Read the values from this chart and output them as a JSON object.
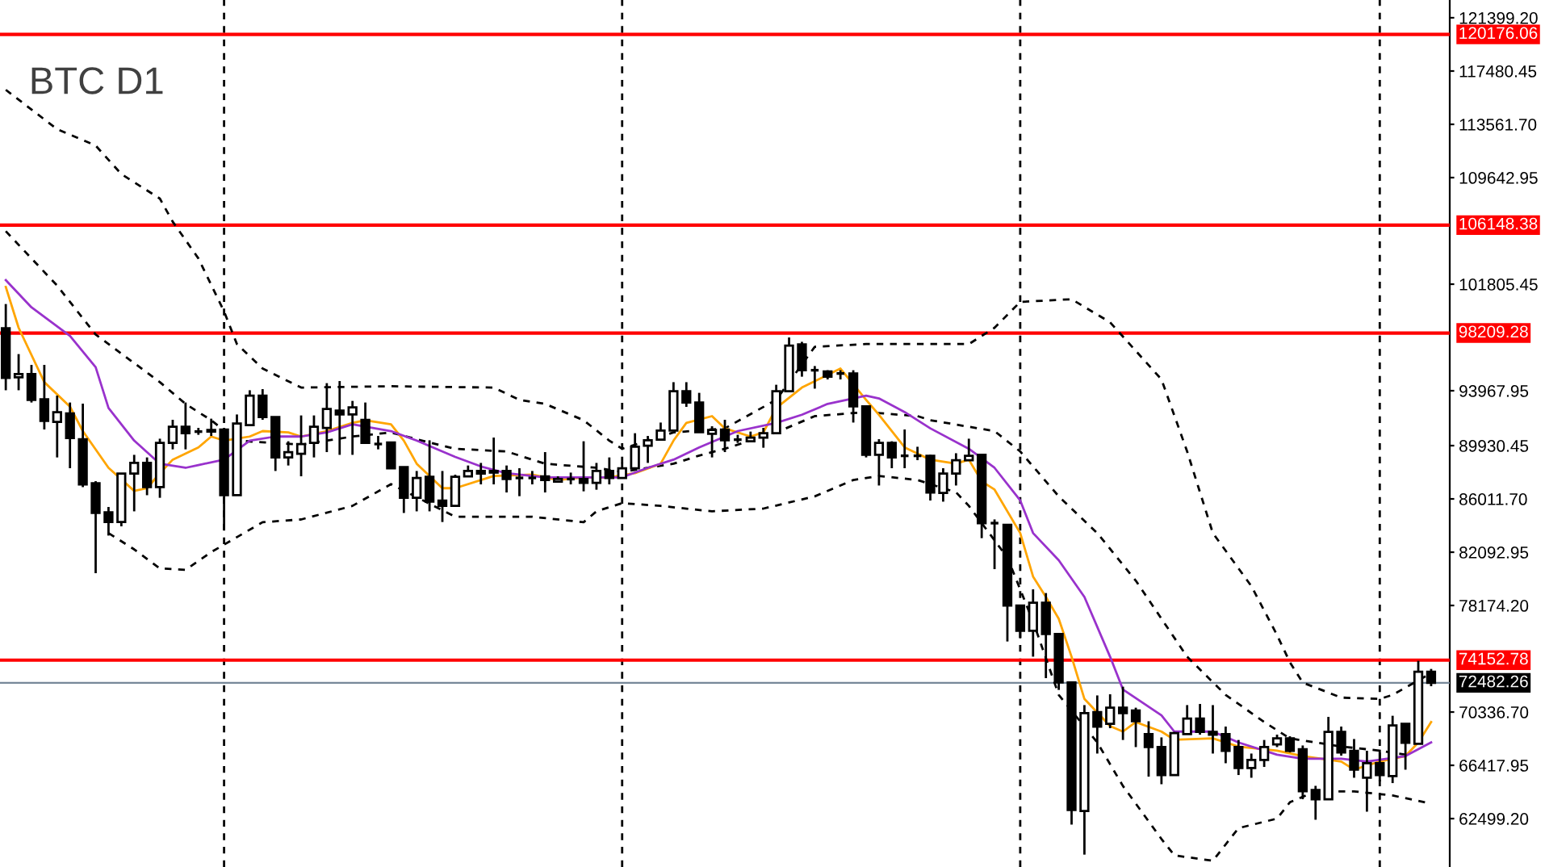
{
  "chart_data": {
    "type": "candlestick",
    "title": "BTC D1",
    "categories": [
      null,
      null,
      null,
      null,
      null,
      null,
      null,
      null,
      null,
      null,
      null,
      null,
      null,
      null,
      null,
      null,
      null,
      null,
      null,
      null,
      null,
      null,
      null,
      null,
      null,
      null,
      null,
      null,
      null,
      null,
      null,
      null,
      null,
      null,
      null,
      null,
      null,
      null,
      null,
      null,
      null,
      null,
      null,
      null,
      null,
      null,
      null,
      null,
      null,
      null,
      null,
      null,
      null,
      null,
      null,
      null,
      null,
      null,
      null,
      null,
      null,
      null,
      null,
      null,
      null,
      null,
      null,
      null,
      null,
      null,
      null,
      null,
      null,
      null,
      null,
      null,
      null,
      null,
      null,
      null,
      null,
      null,
      null,
      null,
      null,
      null,
      null,
      null,
      null,
      null,
      null,
      null,
      null,
      null,
      null,
      null,
      null,
      null,
      null,
      null,
      null,
      null,
      null,
      null,
      null,
      null,
      null,
      null,
      null,
      null,
      null,
      null
    ],
    "ohlc": [
      [
        98563,
        100344,
        94003,
        94918
      ],
      [
        94953,
        96663,
        94003,
        95191
      ],
      [
        95191,
        95868,
        93101,
        93291
      ],
      [
        93338,
        95868,
        91118,
        91747
      ],
      [
        91676,
        93611,
        89063,
        92388
      ],
      [
        92305,
        93101,
        88268,
        90488
      ],
      [
        90405,
        93018,
        86878,
        87080
      ],
      [
        87163,
        87317,
        80549,
        84978
      ],
      [
        85026,
        85418,
        83316,
        84313
      ],
      [
        84313,
        87911,
        83993,
        87876
      ],
      [
        87876,
        89253,
        85097,
        88659
      ],
      [
        88659,
        89063,
        86284,
        86878
      ],
      [
        86878,
        90441,
        86094,
        90132
      ],
      [
        90132,
        91830,
        89657,
        91319
      ],
      [
        91319,
        93101,
        89657,
        90844
      ],
      [
        90963,
        91236,
        90726,
        90963
      ],
      [
        91082,
        91913,
        90642,
        90963
      ],
      [
        91118,
        91236,
        83719,
        86284
      ],
      [
        86284,
        92222,
        86284,
        91557
      ],
      [
        91438,
        94003,
        91438,
        93611
      ],
      [
        93611,
        94086,
        91830,
        92032
      ],
      [
        92032,
        92032,
        88066,
        89063
      ],
      [
        89063,
        90251,
        88469,
        89455
      ],
      [
        89336,
        92151,
        87674,
        90049
      ],
      [
        90132,
        92151,
        89063,
        91319
      ],
      [
        91236,
        94526,
        89455,
        92626
      ],
      [
        92507,
        94680,
        89253,
        92222
      ],
      [
        92222,
        93219,
        89253,
        92744
      ],
      [
        91830,
        93101,
        90132,
        90132
      ],
      [
        90049,
        90642,
        89657,
        90049
      ],
      [
        90168,
        90168,
        88268,
        88268
      ],
      [
        88351,
        88351,
        84978,
        86094
      ],
      [
        86094,
        88066,
        85097,
        87555
      ],
      [
        87638,
        90322,
        85097,
        85809
      ],
      [
        85893,
        88066,
        84313,
        85501
      ],
      [
        85501,
        87793,
        85501,
        87638
      ],
      [
        87674,
        88469,
        87674,
        88066
      ],
      [
        88066,
        88659,
        87080,
        87876
      ],
      [
        88066,
        90524,
        87080,
        87947
      ],
      [
        88066,
        88469,
        86486,
        87472
      ],
      [
        87555,
        88268,
        86213,
        87555
      ],
      [
        87555,
        88066,
        87080,
        87555
      ],
      [
        87674,
        89455,
        86486,
        87401
      ],
      [
        87282,
        87674,
        87282,
        87472
      ],
      [
        87472,
        87947,
        87080,
        87472
      ],
      [
        87472,
        90251,
        86569,
        87199
      ],
      [
        87199,
        88659,
        86688,
        88066
      ],
      [
        88066,
        89063,
        87080,
        87555
      ],
      [
        87555,
        88659,
        87555,
        88268
      ],
      [
        88268,
        90844,
        88268,
        89847
      ],
      [
        89930,
        90642,
        88659,
        90322
      ],
      [
        90369,
        91628,
        90369,
        91034
      ],
      [
        91034,
        94597,
        91034,
        93932
      ],
      [
        93932,
        94597,
        92780,
        93101
      ],
      [
        93101,
        93813,
        90916,
        90916
      ],
      [
        90797,
        91355,
        89063,
        91082
      ],
      [
        91118,
        91830,
        89455,
        90322
      ],
      [
        90369,
        90726,
        90132,
        90369
      ],
      [
        90251,
        90963,
        90251,
        90524
      ],
      [
        90524,
        91236,
        89776,
        90844
      ],
      [
        90844,
        94407,
        90844,
        93932
      ],
      [
        93932,
        97886,
        93932,
        97293
      ],
      [
        97376,
        97566,
        95001,
        95476
      ],
      [
        95476,
        95784,
        94122,
        95476
      ],
      [
        95393,
        95476,
        94799,
        95001
      ],
      [
        95238,
        95476,
        94799,
        95238
      ],
      [
        95238,
        95476,
        91628,
        92816
      ],
      [
        92816,
        92899,
        89063,
        89253
      ],
      [
        89253,
        90405,
        86997,
        90132
      ],
      [
        90132,
        90251,
        88268,
        89063
      ],
      [
        89182,
        91118,
        88268,
        89182
      ],
      [
        89182,
        89847,
        88861,
        89182
      ],
      [
        89182,
        89253,
        85893,
        86486
      ],
      [
        86451,
        88268,
        85809,
        87876
      ],
      [
        87876,
        89372,
        86997,
        88861
      ],
      [
        88861,
        90441,
        88861,
        89182
      ],
      [
        89253,
        89253,
        83126,
        84230
      ],
      [
        84230,
        84503,
        80846,
        84230
      ],
      [
        84111,
        84111,
        75526,
        78174
      ],
      [
        78174,
        78174,
        75799,
        76309
      ],
      [
        76309,
        79361,
        74409,
        78376
      ],
      [
        78376,
        79088,
        72830,
        76072
      ],
      [
        76072,
        76072,
        71963,
        72509
      ],
      [
        72509,
        72593,
        62059,
        63128
      ],
      [
        63057,
        70847,
        59851,
        70253
      ],
      [
        70336,
        71559,
        67284,
        69268
      ],
      [
        69469,
        71643,
        69149,
        70657
      ],
      [
        70657,
        72201,
        68282,
        70253
      ],
      [
        70455,
        70657,
        67759,
        69659
      ],
      [
        68709,
        69659,
        65586,
        67759
      ],
      [
        67759,
        68472,
        65028,
        65705
      ],
      [
        65705,
        68876,
        65705,
        68792
      ],
      [
        68709,
        70847,
        68709,
        69861
      ],
      [
        69861,
        70930,
        68674,
        68876
      ],
      [
        68876,
        70847,
        67284,
        68674
      ],
      [
        68709,
        69268,
        66572,
        67486
      ],
      [
        67759,
        68282,
        65705,
        66216
      ],
      [
        66216,
        67284,
        65503,
        66809
      ],
      [
        66809,
        68282,
        66299,
        67759
      ],
      [
        67961,
        68674,
        67759,
        68401
      ],
      [
        68401,
        68555,
        67368,
        67486
      ],
      [
        67605,
        67878,
        63924,
        64518
      ],
      [
        64601,
        64909,
        62416,
        63924
      ],
      [
        63924,
        69980,
        63924,
        68876
      ],
      [
        68876,
        69268,
        67130,
        67368
      ],
      [
        67486,
        68353,
        65503,
        66097
      ],
      [
        65503,
        67486,
        63009,
        66572
      ],
      [
        66572,
        67569,
        65230,
        65705
      ],
      [
        65622,
        70063,
        65111,
        69351
      ],
      [
        69469,
        69469,
        66097,
        68080
      ],
      [
        67997,
        74101,
        67997,
        73305
      ],
      [
        73305,
        73507,
        72236,
        72482
      ]
    ],
    "series": [
      {
        "type": "line",
        "color": "#000000",
        "line_style": "dashed",
        "values": [
          116100,
          null,
          null,
          null,
          113200,
          null,
          null,
          112000,
          null,
          109900,
          null,
          null,
          108100,
          106400,
          null,
          103700,
          null,
          99800,
          97400,
          null,
          95600,
          null,
          null,
          94200,
          null,
          null,
          null,
          null,
          null,
          null,
          94300,
          null,
          null,
          null,
          null,
          null,
          null,
          null,
          94200,
          null,
          93300,
          null,
          93000,
          null,
          null,
          91800,
          null,
          90300,
          89700,
          null,
          90300,
          null,
          90900,
          null,
          null,
          null,
          91200,
          null,
          null,
          null,
          93300,
          null,
          null,
          97200,
          null,
          null,
          null,
          97400,
          null,
          null,
          null,
          null,
          null,
          null,
          null,
          97400,
          null,
          98600,
          null,
          100500,
          null,
          null,
          null,
          100700,
          null,
          null,
          99000,
          null,
          null,
          null,
          94800,
          null,
          89500,
          null,
          83500,
          null,
          null,
          79600,
          null,
          76000,
          74000,
          72500,
          null,
          null,
          71400,
          null,
          null,
          71300,
          71600,
          null,
          null,
          73200
        ]
      },
      {
        "type": "line",
        "color": "#000000",
        "line_style": "dashed",
        "values": [
          105700,
          null,
          103700,
          null,
          101700,
          null,
          null,
          98100,
          null,
          null,
          null,
          null,
          94600,
          null,
          93000,
          null,
          91800,
          null,
          90300,
          null,
          null,
          null,
          null,
          90000,
          null,
          null,
          null,
          90600,
          null,
          null,
          90900,
          null,
          90400,
          null,
          null,
          89700,
          null,
          null,
          null,
          89500,
          null,
          null,
          88600,
          null,
          null,
          null,
          88300,
          null,
          88000,
          null,
          null,
          null,
          88600,
          null,
          89200,
          null,
          89700,
          null,
          null,
          null,
          90900,
          null,
          null,
          92100,
          null,
          null,
          null,
          92400,
          null,
          null,
          null,
          92100,
          91800,
          null,
          null,
          null,
          null,
          91000,
          null,
          89500,
          null,
          null,
          86200,
          null,
          null,
          83500,
          null,
          null,
          80000,
          null,
          null,
          null,
          74400,
          null,
          null,
          71600,
          null,
          null,
          69600,
          null,
          68400,
          null,
          null,
          null,
          67800,
          null,
          null,
          67500,
          null,
          67200,
          null,
          null
        ]
      },
      {
        "type": "line",
        "color": "#000000",
        "line_style": "dashed",
        "values": [
          null,
          null,
          null,
          null,
          null,
          null,
          null,
          null,
          83500,
          null,
          82300,
          null,
          80900,
          null,
          80800,
          null,
          82100,
          null,
          83200,
          null,
          84300,
          null,
          null,
          84500,
          null,
          null,
          null,
          85500,
          null,
          null,
          87100,
          null,
          null,
          null,
          null,
          84700,
          null,
          null,
          null,
          null,
          null,
          84700,
          null,
          null,
          null,
          84300,
          85100,
          null,
          85700,
          null,
          null,
          85500,
          null,
          null,
          null,
          85100,
          null,
          null,
          null,
          85300,
          null,
          null,
          null,
          86200,
          null,
          null,
          87400,
          null,
          87700,
          null,
          null,
          87400,
          null,
          null,
          86500,
          85500,
          null,
          null,
          81700,
          null,
          77000,
          null,
          71600,
          null,
          null,
          68100,
          null,
          64900,
          null,
          null,
          61000,
          59800,
          null,
          null,
          59400,
          null,
          61800,
          null,
          null,
          62500,
          63700,
          null,
          64500,
          null,
          null,
          64500,
          null,
          null,
          64200,
          null,
          null,
          63600
        ]
      },
      {
        "type": "line",
        "color": "#ffa500",
        "line_style": "solid",
        "values": [
          101600,
          98600,
          null,
          94600,
          null,
          92800,
          91000,
          null,
          88300,
          null,
          86600,
          86800,
          87900,
          88900,
          null,
          89800,
          90600,
          90300,
          null,
          90600,
          91000,
          null,
          90900,
          90600,
          null,
          91000,
          null,
          91600,
          91800,
          null,
          91500,
          90300,
          88600,
          null,
          86800,
          86800,
          null,
          null,
          87700,
          null,
          null,
          87800,
          null,
          87400,
          null,
          87600,
          null,
          87600,
          null,
          87900,
          null,
          88600,
          90300,
          91600,
          null,
          92100,
          91200,
          null,
          90600,
          90900,
          92700,
          null,
          94200,
          null,
          null,
          95600,
          null,
          93300,
          92200,
          null,
          89800,
          null,
          88900,
          null,
          88600,
          88900,
          87300,
          86700,
          null,
          83500,
          80300,
          78800,
          77200,
          74400,
          71300,
          null,
          69300,
          68900,
          69600,
          null,
          68900,
          68300,
          null,
          null,
          68400,
          null,
          67800,
          null,
          null,
          67500,
          null,
          67100,
          null,
          null,
          66700,
          66100,
          null,
          66700,
          null,
          67100,
          68100,
          69600
        ]
      },
      {
        "type": "line",
        "color": "#9932cc",
        "line_style": "solid",
        "values": [
          102100,
          null,
          100100,
          null,
          null,
          98000,
          null,
          95700,
          92700,
          null,
          90300,
          null,
          88600,
          null,
          88300,
          88500,
          null,
          88900,
          null,
          90300,
          null,
          90600,
          null,
          90600,
          null,
          90900,
          null,
          91500,
          null,
          null,
          91000,
          null,
          90300,
          null,
          null,
          89100,
          null,
          88400,
          null,
          87900,
          null,
          null,
          87600,
          null,
          null,
          87600,
          null,
          null,
          87600,
          null,
          88300,
          null,
          88900,
          null,
          89800,
          null,
          90600,
          91000,
          null,
          null,
          91600,
          null,
          92200,
          null,
          93000,
          null,
          null,
          93600,
          93400,
          null,
          92400,
          null,
          91200,
          null,
          null,
          89700,
          null,
          88300,
          null,
          85900,
          83500,
          null,
          81500,
          null,
          78800,
          null,
          74400,
          72000,
          null,
          null,
          70100,
          68900,
          null,
          null,
          68900,
          null,
          68100,
          null,
          null,
          67200,
          null,
          66900,
          null,
          null,
          66900,
          null,
          66700,
          null,
          null,
          67100,
          null,
          68100
        ]
      }
    ],
    "ylim": [
      58940,
      122705
    ],
    "yticks": [
      {
        "value": 121399.2,
        "label": "121399.20"
      },
      {
        "value": 117480.45,
        "label": "117480.45"
      },
      {
        "value": 113561.7,
        "label": "113561.70"
      },
      {
        "value": 109642.95,
        "label": "109642.95"
      },
      {
        "value": 101805.45,
        "label": "101805.45"
      },
      {
        "value": 93967.95,
        "label": "93967.95"
      },
      {
        "value": 89930.45,
        "label": "89930.45"
      },
      {
        "value": 86011.7,
        "label": "86011.70"
      },
      {
        "value": 82092.95,
        "label": "82092.95"
      },
      {
        "value": 78174.2,
        "label": "78174.20"
      },
      {
        "value": 70336.7,
        "label": "70336.70"
      },
      {
        "value": 66417.95,
        "label": "66417.95"
      },
      {
        "value": 62499.2,
        "label": "62499.20"
      }
    ],
    "ref_lines": [
      {
        "axis": "y",
        "value": 120176.06,
        "label": "120176.06",
        "color": "#ff0000",
        "line_style": "solid"
      },
      {
        "axis": "y",
        "value": 106148.38,
        "label": "106148.38",
        "color": "#ff0000",
        "line_style": "solid"
      },
      {
        "axis": "y",
        "value": 98209.28,
        "label": "98209.28",
        "color": "#ff0000",
        "line_style": "solid"
      },
      {
        "axis": "y",
        "value": 74152.78,
        "label": "74152.78",
        "color": "#ff0000",
        "line_style": "solid"
      },
      {
        "axis": "y",
        "value": 72482.26,
        "label": "72482.26",
        "color": "#778899",
        "line_style": "solid"
      }
    ],
    "grid": "x"
  }
}
